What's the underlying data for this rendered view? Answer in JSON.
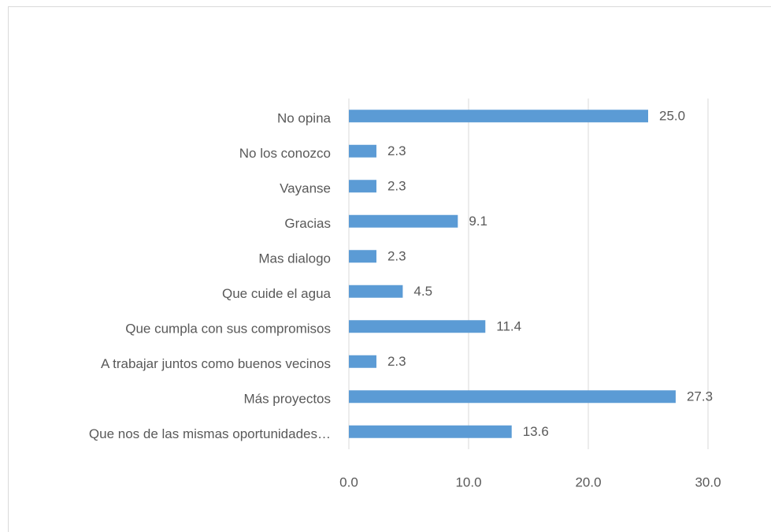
{
  "chart_data": {
    "type": "bar",
    "orientation": "horizontal",
    "categories": [
      "No opina",
      "No los conozco",
      "Vayanse",
      "Gracias",
      "Mas dialogo",
      "Que cuide el agua",
      "Que cumpla con sus compromisos",
      "A trabajar juntos como buenos vecinos",
      "Más proyectos",
      "Que nos de las mismas oportunidades…"
    ],
    "values": [
      25.0,
      2.3,
      2.3,
      9.1,
      2.3,
      4.5,
      11.4,
      2.3,
      27.3,
      13.6
    ],
    "value_labels": [
      "25.0",
      "2.3",
      "2.3",
      "9.1",
      "2.3",
      "4.5",
      "11.4",
      "2.3",
      "27.3",
      "13.6"
    ],
    "color": "#5b9bd5",
    "xlim": [
      0,
      30
    ],
    "xticks": [
      {
        "value": 0,
        "label": "0.0"
      },
      {
        "value": 10,
        "label": "10.0"
      },
      {
        "value": 20,
        "label": "20.0"
      },
      {
        "value": 30,
        "label": "30.0"
      }
    ],
    "grid": true
  }
}
